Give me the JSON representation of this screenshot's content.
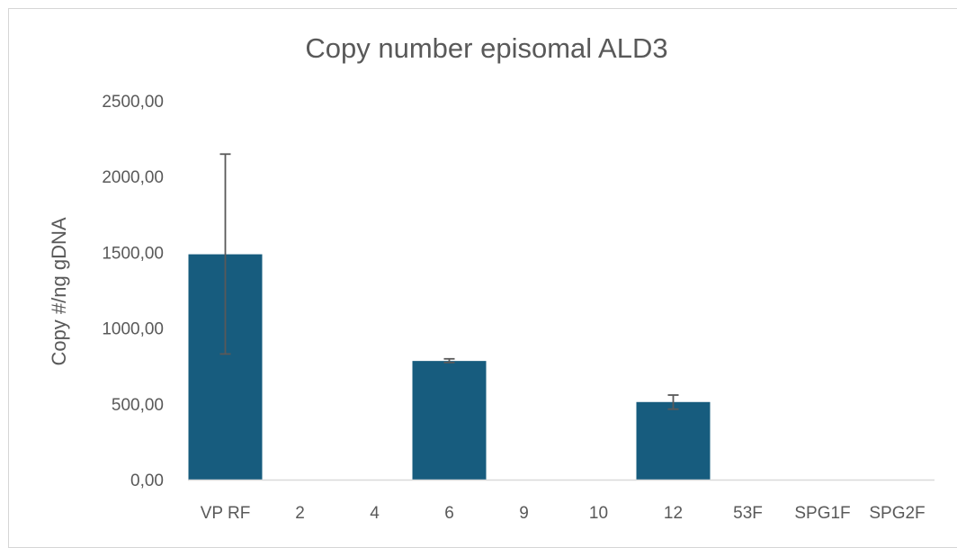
{
  "chart_data": {
    "type": "bar",
    "title": "Copy number episomal ALD3",
    "xlabel": "",
    "ylabel": "Copy #/ng gDNA",
    "categories": [
      "VP RF",
      "2",
      "4",
      "6",
      "9",
      "10",
      "12",
      "53F",
      "SPG1F",
      "SPG2F"
    ],
    "values": [
      1487,
      0,
      0,
      783,
      0,
      0,
      512,
      0,
      0,
      0
    ],
    "error_low": [
      829,
      null,
      null,
      773,
      null,
      null,
      465,
      null,
      null,
      null
    ],
    "error_high": [
      2148,
      null,
      null,
      797,
      null,
      null,
      558,
      null,
      null,
      null
    ],
    "ylim": [
      0,
      2500
    ],
    "yticks": [
      0,
      500,
      1000,
      1500,
      2000,
      2500
    ],
    "ytick_labels": [
      "0,00",
      "500,00",
      "1000,00",
      "1500,00",
      "2000,00",
      "2500,00"
    ],
    "grid": false,
    "legend": "none",
    "bar_color": "#175C7E",
    "error_color": "#595959",
    "axis_color": "#d9d9d9"
  }
}
